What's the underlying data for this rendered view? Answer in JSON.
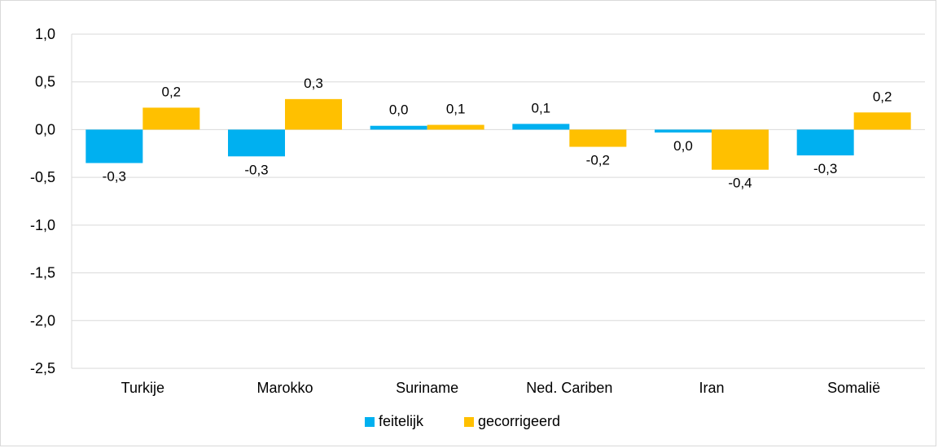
{
  "chart_data": {
    "type": "bar",
    "categories": [
      "Turkije",
      "Marokko",
      "Suriname",
      "Ned. Cariben",
      "Iran",
      "Somalië"
    ],
    "series": [
      {
        "name": "feitelijk",
        "color": "#00b0f0",
        "values": [
          -0.35,
          -0.28,
          0.04,
          0.06,
          -0.03,
          -0.27
        ],
        "labels": [
          "-0,3",
          "-0,3",
          "0,0",
          "0,1",
          "0,0",
          "-0,3"
        ]
      },
      {
        "name": "gecorrigeerd",
        "color": "#ffc000",
        "values": [
          0.23,
          0.32,
          0.05,
          -0.18,
          -0.42,
          0.18
        ],
        "labels": [
          "0,2",
          "0,3",
          "0,1",
          "-0,2",
          "-0,4",
          "0,2"
        ]
      }
    ],
    "ylim": [
      -2.5,
      1.0
    ],
    "yticks": [
      1.0,
      0.5,
      0.0,
      -0.5,
      -1.0,
      -1.5,
      -2.0,
      -2.5
    ],
    "ytick_labels": [
      "1,0",
      "0,5",
      "0,0",
      "-0,5",
      "-1,0",
      "-1,5",
      "-2,0",
      "-2,5"
    ],
    "grid": true,
    "legend_position": "bottom"
  }
}
